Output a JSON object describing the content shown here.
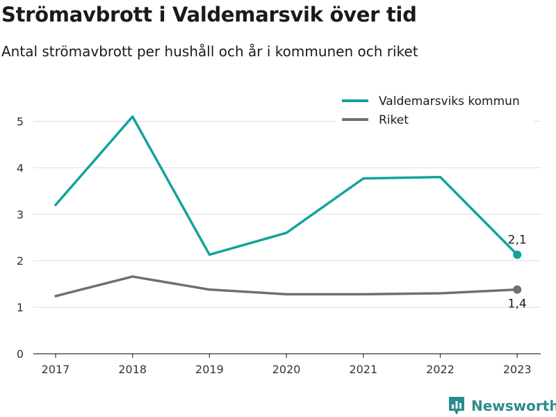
{
  "colors": {
    "kommun": "#12a39a",
    "riket": "#6e6e78",
    "grid": "#dddddd",
    "axis": "#333333",
    "brand": "#2e8b8b"
  },
  "brand": {
    "name": "Newsworthy",
    "icon": "bar-chart-icon"
  },
  "chart_data": {
    "type": "line",
    "title": "Strömavbrott i Valdemarsvik över tid",
    "subtitle": "Antal strömavbrott per hushåll och år i kommunen och riket",
    "xlabel": "",
    "ylabel": "",
    "x": [
      "2017",
      "2018",
      "2019",
      "2020",
      "2021",
      "2022",
      "2023"
    ],
    "ylim": [
      0,
      5.5
    ],
    "yticks": [
      "0",
      "1",
      "2",
      "3",
      "4",
      "5"
    ],
    "grid": true,
    "legend": "top-right",
    "series": [
      {
        "name": "Valdemarsviks kommun",
        "values": [
          3.2,
          5.1,
          2.13,
          2.6,
          3.77,
          3.8,
          2.13
        ],
        "end_label": "2,1",
        "color_key": "kommun"
      },
      {
        "name": "Riket",
        "values": [
          1.24,
          1.66,
          1.38,
          1.28,
          1.28,
          1.3,
          1.38
        ],
        "end_label": "1,4",
        "color_key": "riket"
      }
    ]
  }
}
